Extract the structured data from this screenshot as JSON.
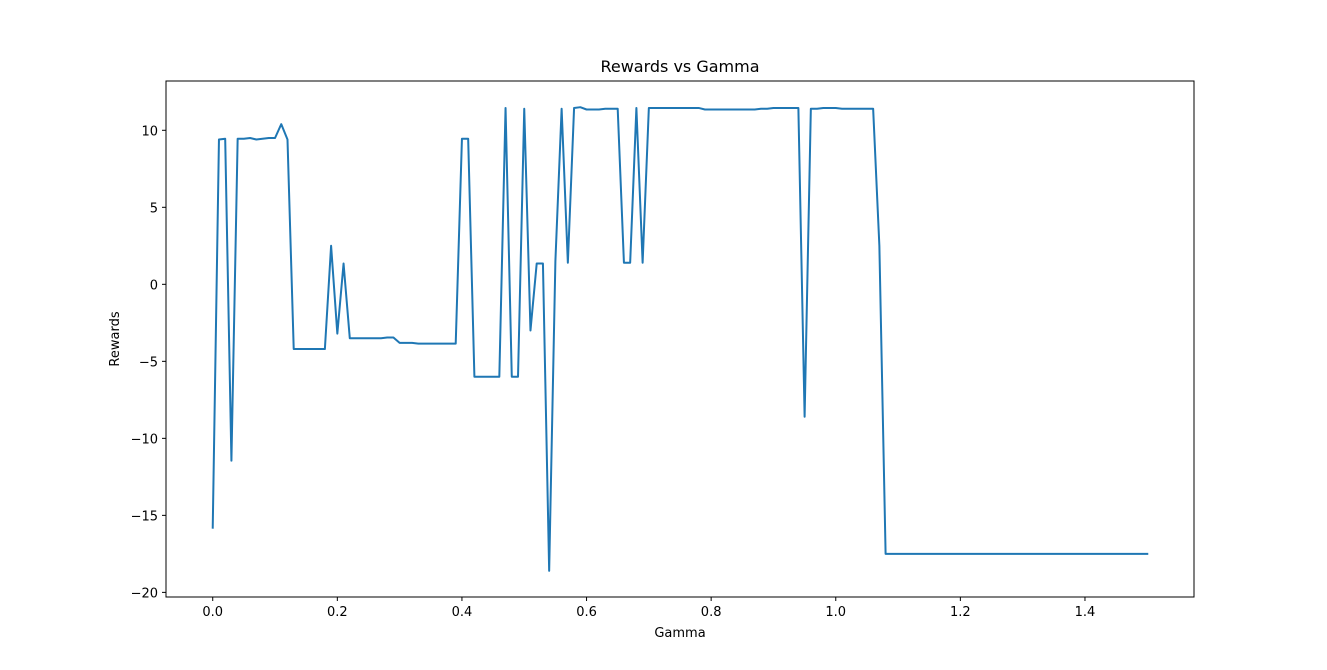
{
  "chart_data": {
    "type": "line",
    "title": "Rewards vs Gamma",
    "xlabel": "Gamma",
    "ylabel": "Rewards",
    "xlim": [
      -0.075,
      1.575
    ],
    "ylim": [
      -20.3,
      13.2
    ],
    "xticks": [
      0.0,
      0.2,
      0.4,
      0.6,
      0.8,
      1.0,
      1.2,
      1.4
    ],
    "xtick_labels": [
      "0.0",
      "0.2",
      "0.4",
      "0.6",
      "0.8",
      "1.0",
      "1.2",
      "1.4"
    ],
    "yticks": [
      10,
      5,
      0,
      -5,
      -10,
      -15,
      -20
    ],
    "ytick_labels": [
      "10",
      "5",
      "0",
      "−5",
      "−10",
      "−15",
      "−20"
    ],
    "grid": false,
    "legend": "none",
    "series": [
      {
        "color": "#1f77b4",
        "x": [
          0.0,
          0.01,
          0.02,
          0.03,
          0.04,
          0.05,
          0.06,
          0.07,
          0.08,
          0.09,
          0.1,
          0.11,
          0.12,
          0.13,
          0.14,
          0.15,
          0.16,
          0.17,
          0.18,
          0.19,
          0.2,
          0.21,
          0.22,
          0.23,
          0.24,
          0.25,
          0.26,
          0.27,
          0.28,
          0.29,
          0.3,
          0.31,
          0.32,
          0.33,
          0.34,
          0.35,
          0.36,
          0.37,
          0.38,
          0.39,
          0.4,
          0.41,
          0.42,
          0.43,
          0.44,
          0.45,
          0.46,
          0.47,
          0.48,
          0.49,
          0.5,
          0.51,
          0.52,
          0.53,
          0.54,
          0.55,
          0.56,
          0.57,
          0.58,
          0.59,
          0.6,
          0.61,
          0.62,
          0.63,
          0.64,
          0.65,
          0.66,
          0.67,
          0.68,
          0.69,
          0.7,
          0.71,
          0.72,
          0.73,
          0.74,
          0.75,
          0.76,
          0.77,
          0.78,
          0.79,
          0.8,
          0.81,
          0.82,
          0.83,
          0.84,
          0.85,
          0.86,
          0.87,
          0.88,
          0.89,
          0.9,
          0.91,
          0.92,
          0.93,
          0.94,
          0.95,
          0.96,
          0.97,
          0.98,
          0.99,
          1.0,
          1.01,
          1.02,
          1.03,
          1.04,
          1.05,
          1.06,
          1.07,
          1.08,
          1.09,
          1.1,
          1.15,
          1.2,
          1.25,
          1.3,
          1.35,
          1.4,
          1.45,
          1.5
        ],
        "y": [
          -15.8,
          9.4,
          9.45,
          -11.45,
          9.45,
          9.45,
          9.5,
          9.4,
          9.45,
          9.5,
          9.5,
          10.4,
          9.4,
          -4.2,
          -4.2,
          -4.2,
          -4.2,
          -4.2,
          -4.2,
          2.5,
          -3.2,
          1.35,
          -3.5,
          -3.5,
          -3.5,
          -3.5,
          -3.5,
          -3.5,
          -3.45,
          -3.45,
          -3.8,
          -3.8,
          -3.8,
          -3.85,
          -3.85,
          -3.85,
          -3.85,
          -3.85,
          -3.85,
          -3.85,
          9.45,
          9.45,
          -6.0,
          -6.0,
          -6.0,
          -6.0,
          -6.0,
          11.45,
          -6.0,
          -6.0,
          11.4,
          -3.0,
          1.35,
          1.35,
          -18.6,
          1.5,
          11.4,
          1.4,
          11.45,
          11.5,
          11.35,
          11.35,
          11.35,
          11.4,
          11.4,
          11.4,
          1.4,
          1.4,
          11.45,
          1.4,
          11.45,
          11.45,
          11.45,
          11.45,
          11.45,
          11.45,
          11.45,
          11.45,
          11.45,
          11.35,
          11.35,
          11.35,
          11.35,
          11.35,
          11.35,
          11.35,
          11.35,
          11.35,
          11.4,
          11.4,
          11.45,
          11.45,
          11.45,
          11.45,
          11.45,
          -8.6,
          11.4,
          11.4,
          11.45,
          11.45,
          11.45,
          11.4,
          11.4,
          11.4,
          11.4,
          11.4,
          11.4,
          2.5,
          -17.5,
          -17.5,
          -17.5,
          -17.5,
          -17.5,
          -17.5,
          -17.5,
          -17.5,
          -17.5,
          -17.5,
          -17.5
        ]
      }
    ]
  }
}
